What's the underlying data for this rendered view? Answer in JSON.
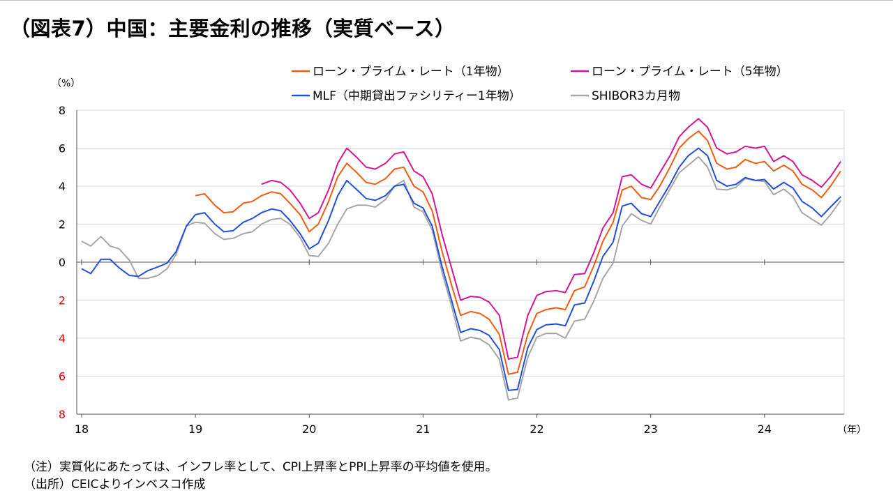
{
  "header": {
    "title": "（図表7）中国：主要金利の推移（実質ベース）"
  },
  "colors": {
    "lpr1": "#f25c0f",
    "lpr5": "#d4159b",
    "mlf": "#2150d8",
    "shibor": "#a6a6a6",
    "negative_tick": "#e00000",
    "grid": "#d9d9d9"
  },
  "notes": {
    "note1": "（注）実質化にあたっては、インフレ率として、CPI上昇率とPPI上昇率の平均値を使用。",
    "note2": "（出所）CEICよりインベスコ作成"
  },
  "chart_data": {
    "type": "line",
    "title": "（図表7）中国：主要金利の推移（実質ベース）",
    "ylabel": "（%）",
    "xlabel": "（年）",
    "ylim": [
      -8,
      8
    ],
    "xlim": [
      2018,
      2024.7
    ],
    "yticks": [
      8,
      6,
      4,
      2,
      0,
      -2,
      -4,
      -6,
      -8
    ],
    "ytick_labels": [
      "8",
      "6",
      "4",
      "2",
      "0",
      "2",
      "4",
      "6",
      "8"
    ],
    "xticks": [
      2018,
      2019,
      2020,
      2021,
      2022,
      2023,
      2024
    ],
    "xtick_labels": [
      "18",
      "19",
      "20",
      "21",
      "22",
      "23",
      "24"
    ],
    "legend_position": "top",
    "series": [
      {
        "key": "lpr1",
        "name": "ローン・プライム・レート（1年物）",
        "color": "#f25c0f",
        "x": [
          2019.0,
          2019.08,
          2019.17,
          2019.25,
          2019.33,
          2019.42,
          2019.5,
          2019.58,
          2019.67,
          2019.75,
          2019.83,
          2019.92,
          2020.0,
          2020.08,
          2020.17,
          2020.25,
          2020.33,
          2020.42,
          2020.5,
          2020.58,
          2020.67,
          2020.75,
          2020.83,
          2020.92,
          2021.0,
          2021.08,
          2021.17,
          2021.25,
          2021.33,
          2021.42,
          2021.5,
          2021.58,
          2021.67,
          2021.75,
          2021.83,
          2021.92,
          2022.0,
          2022.08,
          2022.17,
          2022.25,
          2022.33,
          2022.42,
          2022.5,
          2022.58,
          2022.67,
          2022.75,
          2022.83,
          2022.92,
          2023.0,
          2023.08,
          2023.17,
          2023.25,
          2023.33,
          2023.42,
          2023.5,
          2023.58,
          2023.67,
          2023.75,
          2023.83,
          2023.92,
          2024.0,
          2024.08,
          2024.17,
          2024.25,
          2024.33,
          2024.42,
          2024.5,
          2024.58,
          2024.67
        ],
        "values": [
          3.5,
          3.6,
          3.0,
          2.6,
          2.65,
          3.1,
          3.2,
          3.5,
          3.7,
          3.6,
          3.1,
          2.5,
          1.6,
          2.0,
          3.2,
          4.5,
          5.2,
          4.7,
          4.2,
          4.1,
          4.4,
          4.9,
          5.0,
          4.0,
          3.7,
          2.7,
          0.5,
          -1.2,
          -2.8,
          -2.6,
          -2.7,
          -3.0,
          -3.8,
          -5.9,
          -5.8,
          -3.8,
          -2.7,
          -2.5,
          -2.4,
          -2.5,
          -1.5,
          -1.3,
          -0.2,
          1.1,
          2.1,
          3.8,
          4.0,
          3.4,
          3.3,
          4.0,
          5.0,
          6.0,
          6.5,
          6.9,
          6.4,
          5.2,
          4.9,
          5.0,
          5.4,
          5.2,
          5.3,
          4.8,
          5.1,
          4.8,
          4.1,
          3.8,
          3.4,
          4.0,
          4.8
        ]
      },
      {
        "key": "lpr5",
        "name": "ローン・プライム・レート（5年物）",
        "color": "#d4159b",
        "x": [
          2019.58,
          2019.67,
          2019.75,
          2019.83,
          2019.92,
          2020.0,
          2020.08,
          2020.17,
          2020.25,
          2020.33,
          2020.42,
          2020.5,
          2020.58,
          2020.67,
          2020.75,
          2020.83,
          2020.92,
          2021.0,
          2021.08,
          2021.17,
          2021.25,
          2021.33,
          2021.42,
          2021.5,
          2021.58,
          2021.67,
          2021.75,
          2021.83,
          2021.92,
          2022.0,
          2022.08,
          2022.17,
          2022.25,
          2022.33,
          2022.42,
          2022.5,
          2022.58,
          2022.67,
          2022.75,
          2022.83,
          2022.92,
          2023.0,
          2023.08,
          2023.17,
          2023.25,
          2023.33,
          2023.42,
          2023.5,
          2023.58,
          2023.67,
          2023.75,
          2023.83,
          2023.92,
          2024.0,
          2024.08,
          2024.17,
          2024.25,
          2024.33,
          2024.42,
          2024.5,
          2024.58,
          2024.67
        ],
        "values": [
          4.1,
          4.3,
          4.2,
          3.8,
          3.1,
          2.3,
          2.6,
          3.8,
          5.2,
          6.0,
          5.5,
          5.0,
          4.9,
          5.2,
          5.7,
          5.8,
          4.8,
          4.5,
          3.6,
          1.4,
          -0.3,
          -2.0,
          -1.8,
          -1.85,
          -2.1,
          -2.8,
          -5.1,
          -5.0,
          -2.8,
          -1.75,
          -1.55,
          -1.5,
          -1.6,
          -0.65,
          -0.6,
          0.5,
          1.8,
          2.6,
          4.5,
          4.6,
          4.1,
          3.9,
          4.7,
          5.6,
          6.6,
          7.1,
          7.55,
          7.1,
          6.0,
          5.7,
          5.8,
          6.1,
          6.0,
          6.1,
          5.3,
          5.6,
          5.3,
          4.6,
          4.3,
          3.95,
          4.5,
          5.3
        ]
      },
      {
        "key": "mlf",
        "name": "MLF（中期貸出ファシリティー1年物）",
        "color": "#2150d8",
        "x": [
          2018.0,
          2018.08,
          2018.17,
          2018.25,
          2018.33,
          2018.42,
          2018.5,
          2018.58,
          2018.67,
          2018.75,
          2018.83,
          2018.92,
          2019.0,
          2019.08,
          2019.17,
          2019.25,
          2019.33,
          2019.42,
          2019.5,
          2019.58,
          2019.67,
          2019.75,
          2019.83,
          2019.92,
          2020.0,
          2020.08,
          2020.17,
          2020.25,
          2020.33,
          2020.42,
          2020.5,
          2020.58,
          2020.67,
          2020.75,
          2020.83,
          2020.92,
          2021.0,
          2021.08,
          2021.17,
          2021.25,
          2021.33,
          2021.42,
          2021.5,
          2021.58,
          2021.67,
          2021.75,
          2021.83,
          2021.92,
          2022.0,
          2022.08,
          2022.17,
          2022.25,
          2022.33,
          2022.42,
          2022.5,
          2022.58,
          2022.67,
          2022.75,
          2022.83,
          2022.92,
          2023.0,
          2023.08,
          2023.17,
          2023.25,
          2023.33,
          2023.42,
          2023.5,
          2023.58,
          2023.67,
          2023.75,
          2023.83,
          2023.92,
          2024.0,
          2024.08,
          2024.17,
          2024.25,
          2024.33,
          2024.42,
          2024.5,
          2024.58,
          2024.67
        ],
        "values": [
          -0.35,
          -0.6,
          0.15,
          0.15,
          -0.3,
          -0.7,
          -0.75,
          -0.45,
          -0.25,
          -0.05,
          0.55,
          1.9,
          2.5,
          2.6,
          2.0,
          1.6,
          1.65,
          2.1,
          2.3,
          2.6,
          2.8,
          2.7,
          2.2,
          1.5,
          0.7,
          1.0,
          2.2,
          3.5,
          4.3,
          3.8,
          3.35,
          3.25,
          3.5,
          4.0,
          4.1,
          3.1,
          2.85,
          1.9,
          -0.3,
          -2.0,
          -3.7,
          -3.5,
          -3.6,
          -3.85,
          -4.6,
          -6.75,
          -6.7,
          -4.5,
          -3.55,
          -3.3,
          -3.25,
          -3.35,
          -2.25,
          -2.15,
          -1.0,
          0.3,
          1.05,
          2.95,
          3.1,
          2.55,
          2.4,
          3.2,
          4.1,
          5.0,
          5.6,
          6.0,
          5.6,
          4.3,
          4.0,
          4.1,
          4.45,
          4.3,
          4.35,
          3.85,
          4.2,
          3.9,
          3.2,
          2.85,
          2.4,
          2.9,
          3.45
        ]
      },
      {
        "key": "shibor",
        "name": "SHIBOR3カ月物",
        "color": "#a6a6a6",
        "x": [
          2018.0,
          2018.08,
          2018.17,
          2018.25,
          2018.33,
          2018.42,
          2018.5,
          2018.58,
          2018.67,
          2018.75,
          2018.83,
          2018.92,
          2019.0,
          2019.08,
          2019.17,
          2019.25,
          2019.33,
          2019.42,
          2019.5,
          2019.58,
          2019.67,
          2019.75,
          2019.83,
          2019.92,
          2020.0,
          2020.08,
          2020.17,
          2020.25,
          2020.33,
          2020.42,
          2020.5,
          2020.58,
          2020.67,
          2020.75,
          2020.83,
          2020.92,
          2021.0,
          2021.08,
          2021.17,
          2021.25,
          2021.33,
          2021.42,
          2021.5,
          2021.58,
          2021.67,
          2021.75,
          2021.83,
          2021.92,
          2022.0,
          2022.08,
          2022.17,
          2022.25,
          2022.33,
          2022.42,
          2022.5,
          2022.58,
          2022.67,
          2022.75,
          2022.83,
          2022.92,
          2023.0,
          2023.08,
          2023.17,
          2023.25,
          2023.33,
          2023.42,
          2023.5,
          2023.58,
          2023.67,
          2023.75,
          2023.83,
          2023.92,
          2024.0,
          2024.08,
          2024.17,
          2024.25,
          2024.33,
          2024.42,
          2024.5,
          2024.58,
          2024.67
        ],
        "values": [
          1.1,
          0.85,
          1.35,
          0.85,
          0.7,
          0.1,
          -0.85,
          -0.85,
          -0.7,
          -0.35,
          0.4,
          1.9,
          2.1,
          2.05,
          1.5,
          1.2,
          1.25,
          1.5,
          1.6,
          2.0,
          2.25,
          2.3,
          2.0,
          1.3,
          0.35,
          0.3,
          1.0,
          2.0,
          2.8,
          3.0,
          3.0,
          2.9,
          3.3,
          4.0,
          4.3,
          2.9,
          2.65,
          1.7,
          -0.6,
          -2.3,
          -4.15,
          -3.95,
          -4.05,
          -4.35,
          -5.1,
          -7.25,
          -7.15,
          -5.0,
          -3.95,
          -3.75,
          -3.75,
          -4.0,
          -3.1,
          -3.0,
          -2.05,
          -0.85,
          -0.05,
          1.9,
          2.55,
          2.2,
          2.0,
          2.9,
          3.85,
          4.7,
          5.1,
          5.55,
          5.0,
          3.85,
          3.8,
          3.95,
          4.4,
          4.3,
          4.25,
          3.55,
          3.85,
          3.45,
          2.6,
          2.25,
          1.95,
          2.5,
          3.25
        ]
      }
    ]
  }
}
